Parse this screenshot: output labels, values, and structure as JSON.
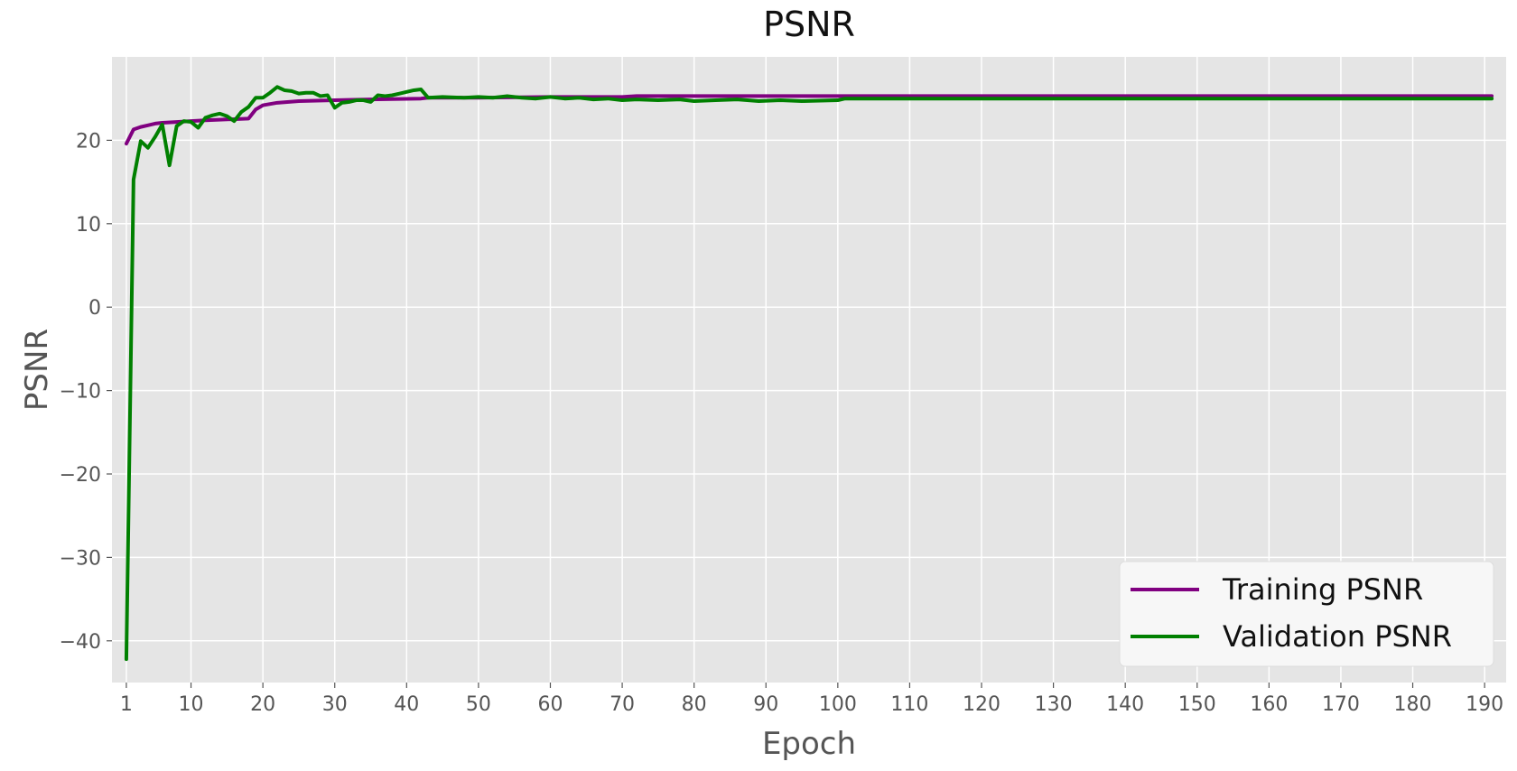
{
  "chart_data": {
    "type": "line",
    "title": "PSNR",
    "xlabel": "Epoch",
    "ylabel": "PSNR",
    "xlim": [
      -1,
      193
    ],
    "ylim": [
      -45,
      30
    ],
    "xticks": [
      1,
      10,
      20,
      30,
      40,
      50,
      60,
      70,
      80,
      90,
      100,
      110,
      120,
      130,
      140,
      150,
      160,
      170,
      180,
      190
    ],
    "yticks": [
      -40,
      -30,
      -20,
      -10,
      0,
      10,
      20
    ],
    "grid": true,
    "legend_position": "bottom-right",
    "background": "#e5e5e5",
    "series": [
      {
        "name": "Training PSNR",
        "color": "#800080",
        "points": [
          [
            1,
            19.6
          ],
          [
            2,
            21.3
          ],
          [
            3,
            21.6
          ],
          [
            4,
            21.8
          ],
          [
            5,
            22.0
          ],
          [
            6,
            22.1
          ],
          [
            8,
            22.2
          ],
          [
            10,
            22.3
          ],
          [
            12,
            22.4
          ],
          [
            15,
            22.5
          ],
          [
            18,
            22.6
          ],
          [
            19,
            23.7
          ],
          [
            20,
            24.2
          ],
          [
            22,
            24.5
          ],
          [
            25,
            24.7
          ],
          [
            30,
            24.8
          ],
          [
            35,
            24.9
          ],
          [
            42,
            25.0
          ],
          [
            43,
            25.1
          ],
          [
            50,
            25.1
          ],
          [
            60,
            25.2
          ],
          [
            70,
            25.2
          ],
          [
            72,
            25.3
          ],
          [
            100,
            25.3
          ],
          [
            191,
            25.3
          ]
        ]
      },
      {
        "name": "Validation PSNR",
        "color": "#008000",
        "points": [
          [
            1,
            -42.2
          ],
          [
            2,
            15.3
          ],
          [
            3,
            19.9
          ],
          [
            4,
            19.1
          ],
          [
            5,
            20.4
          ],
          [
            6,
            21.9
          ],
          [
            7,
            17.0
          ],
          [
            8,
            21.7
          ],
          [
            9,
            22.3
          ],
          [
            10,
            22.2
          ],
          [
            11,
            21.5
          ],
          [
            12,
            22.7
          ],
          [
            13,
            23.0
          ],
          [
            14,
            23.2
          ],
          [
            15,
            22.9
          ],
          [
            16,
            22.3
          ],
          [
            17,
            23.4
          ],
          [
            18,
            24.0
          ],
          [
            19,
            25.1
          ],
          [
            20,
            25.1
          ],
          [
            21,
            25.7
          ],
          [
            22,
            26.4
          ],
          [
            23,
            26.0
          ],
          [
            24,
            25.9
          ],
          [
            25,
            25.6
          ],
          [
            26,
            25.7
          ],
          [
            27,
            25.7
          ],
          [
            28,
            25.3
          ],
          [
            29,
            25.4
          ],
          [
            30,
            23.9
          ],
          [
            31,
            24.5
          ],
          [
            32,
            24.6
          ],
          [
            33,
            24.8
          ],
          [
            34,
            24.8
          ],
          [
            35,
            24.6
          ],
          [
            36,
            25.4
          ],
          [
            37,
            25.3
          ],
          [
            38,
            25.4
          ],
          [
            39,
            25.6
          ],
          [
            40,
            25.8
          ],
          [
            41,
            26.0
          ],
          [
            42,
            26.1
          ],
          [
            43,
            25.1
          ],
          [
            45,
            25.2
          ],
          [
            48,
            25.1
          ],
          [
            50,
            25.2
          ],
          [
            52,
            25.1
          ],
          [
            54,
            25.3
          ],
          [
            56,
            25.1
          ],
          [
            58,
            25.0
          ],
          [
            60,
            25.2
          ],
          [
            62,
            25.0
          ],
          [
            64,
            25.1
          ],
          [
            66,
            24.9
          ],
          [
            68,
            25.0
          ],
          [
            70,
            24.8
          ],
          [
            72,
            24.9
          ],
          [
            75,
            24.8
          ],
          [
            78,
            24.9
          ],
          [
            80,
            24.7
          ],
          [
            83,
            24.8
          ],
          [
            86,
            24.9
          ],
          [
            89,
            24.7
          ],
          [
            92,
            24.8
          ],
          [
            95,
            24.7
          ],
          [
            100,
            24.8
          ],
          [
            101,
            25.0
          ],
          [
            110,
            25.0
          ],
          [
            120,
            25.0
          ],
          [
            130,
            25.0
          ],
          [
            150,
            25.0
          ],
          [
            191,
            25.0
          ]
        ]
      }
    ]
  }
}
